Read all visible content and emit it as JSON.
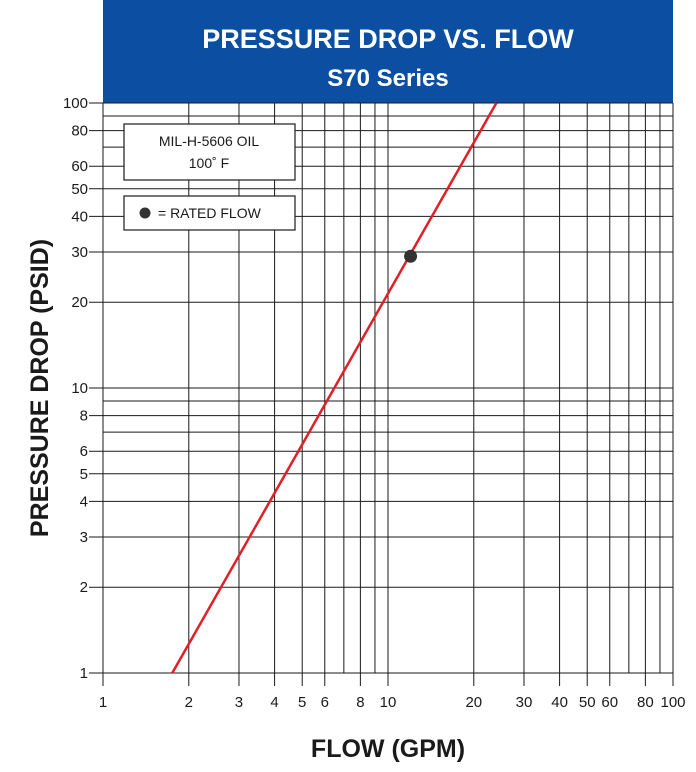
{
  "chart_data": {
    "type": "line",
    "title": "PRESSURE DROP VS. FLOW",
    "subtitle": "S70 Series",
    "xlabel": "FLOW (GPM)",
    "ylabel": "PRESSURE DROP (PSID)",
    "x_scale": "log",
    "y_scale": "log",
    "xlim": [
      1,
      100
    ],
    "ylim": [
      1,
      100
    ],
    "x_tick_labels": [
      "1",
      "2",
      "3",
      "4",
      "5",
      "6",
      "8",
      "10",
      "20",
      "30",
      "40",
      "50",
      "60",
      "80",
      "100"
    ],
    "y_tick_labels": [
      "1",
      "2",
      "3",
      "4",
      "5",
      "6",
      "8",
      "10",
      "20",
      "30",
      "40",
      "50",
      "60",
      "80",
      "100"
    ],
    "grid": true,
    "series": [
      {
        "color": "#e01f26",
        "x": [
          1.75,
          24
        ],
        "y": [
          1,
          100
        ]
      }
    ],
    "rated_flow_point": {
      "x": 12,
      "y": 29
    },
    "annotations": {
      "fluid": "MIL-H-5606 OIL",
      "temperature": "100˚ F",
      "legend_label": "= RATED FLOW"
    },
    "colors": {
      "title_band": "#0b4ea2",
      "line": "#e01f26",
      "grid": "#1a1a1a",
      "marker": "#333333"
    }
  }
}
